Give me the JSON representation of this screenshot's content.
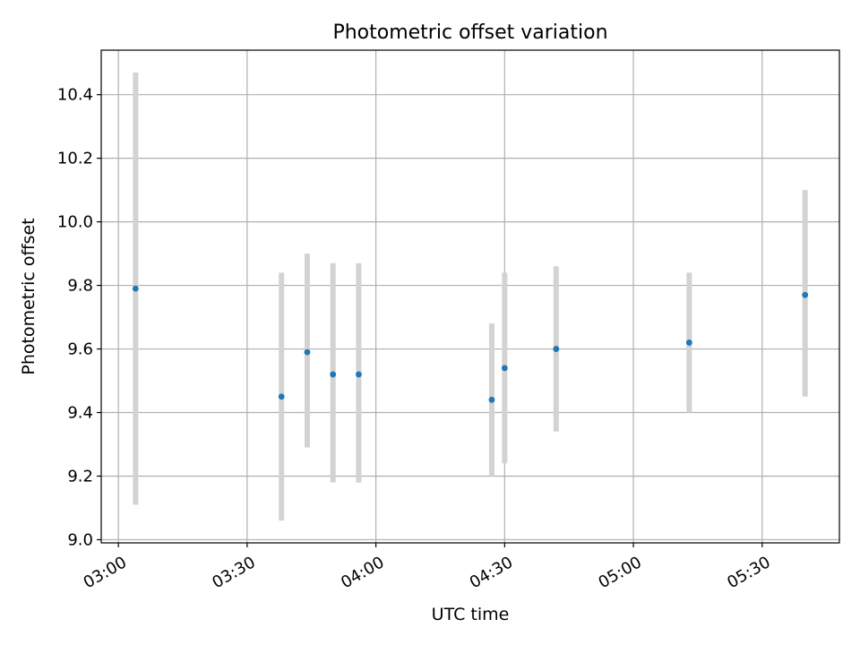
{
  "chart_data": {
    "type": "scatter",
    "title": "Photometric offset variation",
    "xlabel": "UTC time",
    "ylabel": "Photometric offset",
    "x_ticks": [
      "03:00",
      "03:30",
      "04:00",
      "04:30",
      "05:00",
      "05:30"
    ],
    "y_ticks": [
      "9.0",
      "9.2",
      "9.4",
      "9.6",
      "9.8",
      "10.0",
      "10.2",
      "10.4"
    ],
    "xlim": [
      "02:56",
      "05:48"
    ],
    "ylim": [
      8.99,
      10.54
    ],
    "grid": true,
    "marker_color": "#1f77b4",
    "errorbar_color": "#d3d3d3",
    "points": [
      {
        "time": "03:04",
        "offset": 9.79,
        "low": 9.11,
        "high": 10.47
      },
      {
        "time": "03:38",
        "offset": 9.45,
        "low": 9.06,
        "high": 9.84
      },
      {
        "time": "03:44",
        "offset": 9.59,
        "low": 9.29,
        "high": 9.9
      },
      {
        "time": "03:50",
        "offset": 9.52,
        "low": 9.18,
        "high": 9.87
      },
      {
        "time": "03:56",
        "offset": 9.52,
        "low": 9.18,
        "high": 9.87
      },
      {
        "time": "04:27",
        "offset": 9.44,
        "low": 9.2,
        "high": 9.68
      },
      {
        "time": "04:30",
        "offset": 9.54,
        "low": 9.24,
        "high": 9.84
      },
      {
        "time": "04:42",
        "offset": 9.6,
        "low": 9.34,
        "high": 9.86
      },
      {
        "time": "05:13",
        "offset": 9.62,
        "low": 9.4,
        "high": 9.84
      },
      {
        "time": "05:40",
        "offset": 9.77,
        "low": 9.45,
        "high": 10.1
      }
    ]
  }
}
